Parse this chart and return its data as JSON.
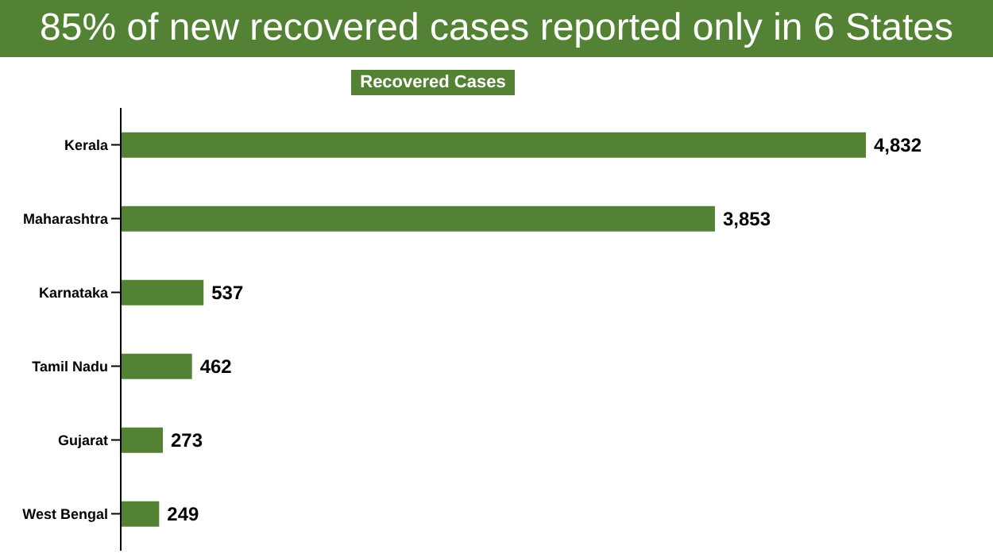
{
  "chart_data": {
    "type": "bar",
    "orientation": "horizontal",
    "title": "85% of new recovered cases reported only in 6 States",
    "categories": [
      "Kerala",
      "Maharashtra",
      "Karnataka",
      "Tamil Nadu",
      "Gujarat",
      "West Bengal"
    ],
    "series": [
      {
        "name": "Recovered Cases",
        "color": "#548235",
        "values": [
          4832,
          3853,
          537,
          462,
          273,
          249
        ],
        "value_labels": [
          "4,832",
          "3,853",
          "537",
          "462",
          "273",
          "249"
        ]
      }
    ],
    "legend": "top",
    "grid": false,
    "tick_labels": "y"
  }
}
